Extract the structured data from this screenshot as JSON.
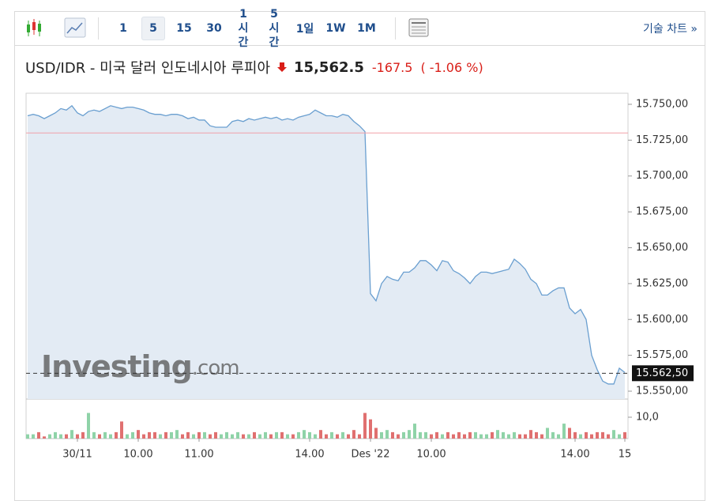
{
  "toolbar": {
    "intervals": [
      "1",
      "5",
      "15",
      "30",
      "1시간",
      "5시간",
      "1일",
      "1W",
      "1M"
    ],
    "technical_chart": "기술 차트 »"
  },
  "chart_data": {
    "type": "area",
    "title": "USD/IDR - 미국 달러 인도네시아 루피아",
    "price": "15,562.5",
    "change": "-167.5",
    "change_percent": "( -1.06 %)",
    "watermark_brand": "Investing",
    "watermark_suffix": ".com",
    "color": "#6a9fd0",
    "fill": "#e3ebf4",
    "prev_close": 15730,
    "prev_close_color": "#f2a0a8",
    "last_label": {
      "value": 15562.5,
      "label": "15.562,50"
    },
    "xlim": [
      0,
      108
    ],
    "xticks": [
      {
        "value": 9,
        "label": "30/11"
      },
      {
        "value": 20,
        "label": "10.00"
      },
      {
        "value": 31,
        "label": "11.00"
      },
      {
        "value": 51,
        "label": "14.00"
      },
      {
        "value": 62,
        "label": "Des '22"
      },
      {
        "value": 73,
        "label": "10.00"
      },
      {
        "value": 99,
        "label": "14.00"
      },
      {
        "value": 108,
        "label": "15"
      }
    ],
    "ylim": [
      15544.5,
      15757.7
    ],
    "yticks": [
      {
        "value": 15550,
        "label": "15.550,00"
      },
      {
        "value": 15575,
        "label": "15.575,00"
      },
      {
        "value": 15600,
        "label": "15.600,00"
      },
      {
        "value": 15625,
        "label": "15.625,00"
      },
      {
        "value": 15650,
        "label": "15.650,00"
      },
      {
        "value": 15675,
        "label": "15.675,00"
      },
      {
        "value": 15700,
        "label": "15.700,00"
      },
      {
        "value": 15725,
        "label": "15.725,00"
      },
      {
        "value": 15750,
        "label": "15.750,00"
      }
    ],
    "values": [
      15742,
      15743,
      15742,
      15740,
      15742,
      15744,
      15747,
      15746,
      15749,
      15744,
      15742,
      15745,
      15746,
      15745,
      15747,
      15749,
      15748,
      15747,
      15748,
      15748,
      15747,
      15746,
      15744,
      15743,
      15743,
      15742,
      15743,
      15743,
      15742,
      15740,
      15741,
      15739,
      15739,
      15735,
      15734,
      15734,
      15734,
      15738,
      15739,
      15738,
      15740,
      15739,
      15740,
      15741,
      15740,
      15741,
      15739,
      15740,
      15739,
      15741,
      15742,
      15743,
      15746,
      15744,
      15742,
      15742,
      15741,
      15743,
      15742,
      15738,
      15735,
      15731,
      15618,
      15613,
      15625,
      15630,
      15628,
      15627,
      15633,
      15633,
      15636,
      15641,
      15641,
      15638,
      15634,
      15641,
      15640,
      15634,
      15632,
      15629,
      15625,
      15630,
      15633,
      15633,
      15632,
      15633,
      15634,
      15635,
      15642,
      15639,
      15635,
      15628,
      15625,
      15617,
      15617,
      15620,
      15622,
      15622,
      15608,
      15604,
      15607,
      15600,
      15575,
      15565,
      15557,
      15555,
      15555,
      15566,
      15563
    ],
    "volume": {
      "up_color": "#8fd3a8",
      "down_color": "#e07070",
      "ylim": [
        0,
        18.5
      ],
      "yticks": [
        {
          "value": 10,
          "label": "10,0"
        }
      ],
      "values": [
        2,
        2,
        3,
        1,
        2,
        3,
        2,
        2,
        4,
        2,
        3,
        12,
        3,
        2,
        3,
        2,
        3,
        8,
        2,
        3,
        4,
        2,
        3,
        3,
        2,
        3,
        3,
        4,
        2,
        3,
        2,
        3,
        3,
        2,
        3,
        2,
        3,
        2,
        3,
        2,
        2,
        3,
        2,
        3,
        2,
        3,
        3,
        2,
        2,
        3,
        4,
        3,
        2,
        4,
        2,
        3,
        2,
        3,
        2,
        4,
        2,
        12,
        9,
        5,
        3,
        4,
        3,
        2,
        3,
        4,
        7,
        3,
        3,
        2,
        3,
        2,
        3,
        2,
        3,
        2,
        3,
        3,
        2,
        2,
        3,
        4,
        3,
        2,
        3,
        2,
        2,
        4,
        3,
        2,
        5,
        3,
        2,
        7,
        5,
        3,
        2,
        3,
        2,
        3,
        3,
        2,
        4,
        2,
        3
      ]
    }
  }
}
